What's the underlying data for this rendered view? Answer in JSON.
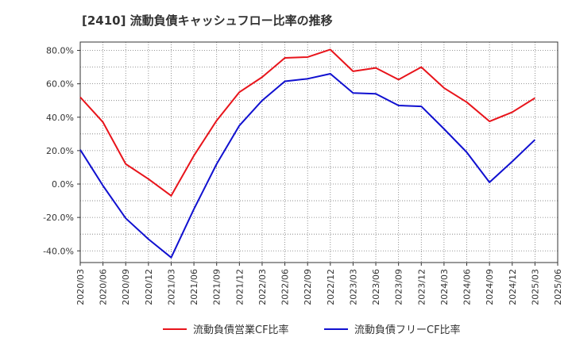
{
  "chart_data": {
    "type": "line",
    "title": "[2410]  流動負債キャッシュフロー比率の推移",
    "x": [
      "2020/03",
      "2020/06",
      "2020/09",
      "2020/12",
      "2021/03",
      "2021/06",
      "2021/09",
      "2021/12",
      "2022/03",
      "2022/06",
      "2022/09",
      "2022/12",
      "2023/03",
      "2023/06",
      "2023/09",
      "2023/12",
      "2024/03",
      "2024/06",
      "2024/09",
      "2024/12",
      "2025/03",
      "2025/06"
    ],
    "y_ticks": [
      "80.0%",
      "60.0%",
      "40.0%",
      "20.0%",
      "0.0%",
      "-20.0%",
      "-40.0%"
    ],
    "y_tick_values": [
      80,
      60,
      40,
      20,
      0,
      -20,
      -40
    ],
    "ylim": [
      -47,
      85
    ],
    "grid": true,
    "legend_position": "bottom",
    "series": [
      {
        "name": "流動負債営業CF比率",
        "color": "#e8141b",
        "values": [
          52,
          37,
          12,
          3,
          -7,
          17,
          38,
          55,
          64,
          75.5,
          76,
          80.5,
          67.5,
          69.5,
          62.5,
          70,
          57.5,
          49,
          37.5,
          43,
          51.5,
          null
        ]
      },
      {
        "name": "流動負債フリーCF比率",
        "color": "#1010d0",
        "values": [
          20.5,
          -1,
          -20.5,
          -33,
          -44,
          -15,
          12,
          35,
          50,
          61.5,
          63,
          66,
          54.5,
          54,
          47,
          46.5,
          33,
          19,
          1,
          13.5,
          26.5,
          null
        ]
      }
    ]
  }
}
